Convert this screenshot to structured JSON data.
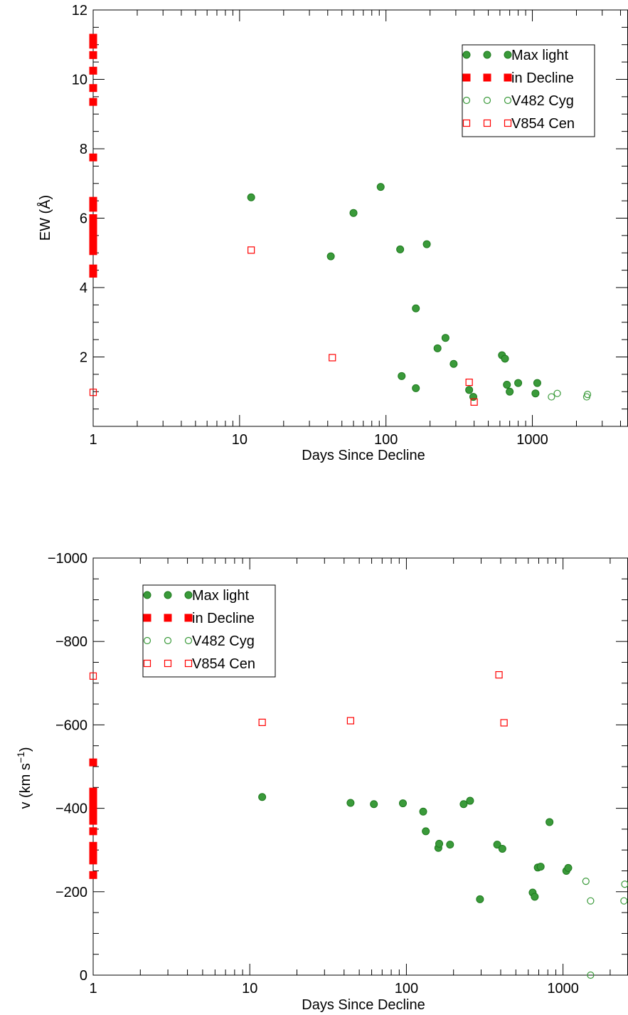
{
  "colors": {
    "green": "#3a9a3a",
    "green_edge": "#1e7a1e",
    "red": "#ff0000",
    "axis": "#000000"
  },
  "chart_data": [
    {
      "type": "scatter",
      "xlabel": "Days Since Decline",
      "ylabel": "EW (Å)",
      "xscale": "log",
      "xlim": [
        1,
        4500
      ],
      "ylim": [
        0,
        12
      ],
      "x_ticks": [
        1,
        10,
        100,
        1000
      ],
      "x_tick_labels": [
        "1",
        "10",
        "100",
        "1000"
      ],
      "y_ticks": [
        2,
        4,
        6,
        8,
        10,
        12
      ],
      "y_tick_labels": [
        "2",
        "4",
        "6",
        "8",
        "10",
        "12"
      ],
      "y_minor_step": 0.5,
      "legend_position": "top-right",
      "series": [
        {
          "name": "Max light",
          "marker": "filled-circle",
          "color": "green",
          "x": [
            12,
            42,
            60,
            92,
            125,
            160,
            190,
            128,
            160,
            225,
            255,
            290,
            370,
            395,
            620,
            650,
            670,
            700,
            800,
            1050,
            1080
          ],
          "y": [
            6.6,
            4.9,
            6.15,
            6.9,
            5.1,
            3.4,
            5.25,
            1.45,
            1.1,
            2.25,
            2.55,
            1.8,
            1.05,
            0.85,
            2.05,
            1.95,
            1.2,
            1.0,
            1.25,
            0.95,
            1.25
          ]
        },
        {
          "name": "in Decline",
          "marker": "filled-square",
          "color": "red",
          "x": [
            1,
            1,
            1,
            1,
            1,
            1,
            1,
            1,
            1,
            1,
            1,
            1,
            1,
            1,
            1,
            1,
            1,
            1,
            1,
            1,
            1
          ],
          "y": [
            11.2,
            11.0,
            10.7,
            10.25,
            9.75,
            9.35,
            7.75,
            6.5,
            6.3,
            6.0,
            5.9,
            5.75,
            5.6,
            5.45,
            5.3,
            5.2,
            4.55,
            4.4,
            5.05,
            5.5,
            5.85
          ]
        },
        {
          "name": "V482 Cyg",
          "marker": "open-circle",
          "color": "green",
          "x": [
            1350,
            1480,
            2350,
            2380
          ],
          "y": [
            0.85,
            0.95,
            0.85,
            0.92
          ]
        },
        {
          "name": "V854 Cen",
          "marker": "open-square",
          "color": "red",
          "x": [
            1,
            12,
            43,
            370,
            400
          ],
          "y": [
            0.98,
            5.08,
            1.98,
            1.27,
            0.7
          ]
        }
      ]
    },
    {
      "type": "scatter",
      "xlabel": "Days Since Decline",
      "ylabel": "v (km s",
      "ylabel_sup": "−1",
      "ylabel_close": ")",
      "xscale": "log",
      "xlim": [
        1,
        2600
      ],
      "ylim": [
        0,
        -1000
      ],
      "x_ticks": [
        1,
        10,
        100,
        1000
      ],
      "x_tick_labels": [
        "1",
        "10",
        "100",
        "1000"
      ],
      "y_ticks": [
        0,
        -200,
        -400,
        -600,
        -800,
        -1000
      ],
      "y_tick_labels": [
        "0",
        "−200",
        "−400",
        "−600",
        "−800",
        "−1000"
      ],
      "y_minor_step": -50,
      "legend_position": "top-left",
      "series": [
        {
          "name": "Max light",
          "marker": "filled-circle",
          "color": "green",
          "x": [
            12,
            44,
            62,
            95,
            128,
            133,
            160,
            162,
            190,
            232,
            255,
            295,
            380,
            410,
            640,
            660,
            690,
            720,
            820,
            1050,
            1080
          ],
          "y": [
            -427,
            -413,
            -410,
            -412,
            -392,
            -345,
            -305,
            -315,
            -313,
            -410,
            -418,
            -182,
            -313,
            -303,
            -198,
            -188,
            -258,
            -260,
            -367,
            -250,
            -257
          ]
        },
        {
          "name": "in Decline",
          "marker": "filled-square",
          "color": "red",
          "x": [
            1,
            1,
            1,
            1,
            1,
            1,
            1,
            1,
            1,
            1,
            1,
            1,
            1,
            1,
            1
          ],
          "y": [
            -510,
            -440,
            -430,
            -420,
            -410,
            -400,
            -390,
            -380,
            -370,
            -345,
            -310,
            -300,
            -285,
            -275,
            -240
          ]
        },
        {
          "name": "V482 Cyg",
          "marker": "open-circle",
          "color": "green",
          "x": [
            1400,
            1500,
            1500,
            2480,
            2450
          ],
          "y": [
            -225,
            -178,
            0,
            -218,
            -178
          ]
        },
        {
          "name": "V854 Cen",
          "marker": "open-square",
          "color": "red",
          "x": [
            1,
            12,
            44,
            390,
            420
          ],
          "y": [
            -717,
            -606,
            -610,
            -720,
            -605
          ]
        }
      ]
    }
  ]
}
